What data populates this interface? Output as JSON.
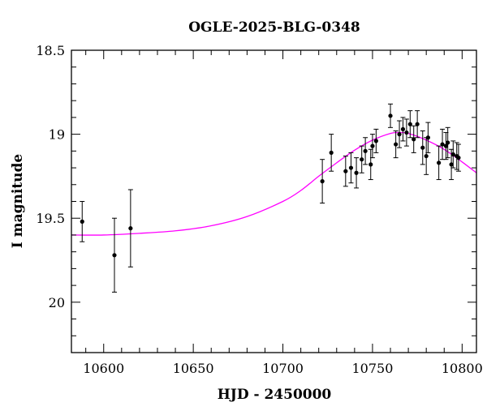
{
  "chart_data": {
    "type": "scatter",
    "title": "OGLE-2025-BLG-0348",
    "xlabel": "HJD - 2450000",
    "ylabel": "I magnitude",
    "xlim": [
      10582,
      10808
    ],
    "ylim": [
      18.5,
      20.3
    ],
    "y_inverted": true,
    "grid": false,
    "x_ticks": [
      10600,
      10650,
      10700,
      10750,
      10800
    ],
    "x_tick_labels": [
      "10600",
      "10650",
      "10700",
      "10750",
      "10800"
    ],
    "y_ticks": [
      18.5,
      19.0,
      19.5,
      20.0
    ],
    "y_tick_labels": [
      "18.5",
      "19",
      "19.5",
      "20"
    ],
    "series": [
      {
        "kind": "points_with_errorbars",
        "color": "#000000",
        "points": [
          {
            "x": 10588,
            "y": 19.52,
            "err": 0.12
          },
          {
            "x": 10606,
            "y": 19.72,
            "err": 0.22
          },
          {
            "x": 10615,
            "y": 19.56,
            "err": 0.23
          },
          {
            "x": 10722,
            "y": 19.28,
            "err": 0.13
          },
          {
            "x": 10727,
            "y": 19.11,
            "err": 0.11
          },
          {
            "x": 10735,
            "y": 19.22,
            "err": 0.09
          },
          {
            "x": 10738,
            "y": 19.2,
            "err": 0.09
          },
          {
            "x": 10741,
            "y": 19.23,
            "err": 0.09
          },
          {
            "x": 10744,
            "y": 19.15,
            "err": 0.08
          },
          {
            "x": 10746,
            "y": 19.1,
            "err": 0.08
          },
          {
            "x": 10749,
            "y": 19.18,
            "err": 0.09
          },
          {
            "x": 10750,
            "y": 19.07,
            "err": 0.07
          },
          {
            "x": 10752,
            "y": 19.04,
            "err": 0.07
          },
          {
            "x": 10760,
            "y": 18.89,
            "err": 0.07
          },
          {
            "x": 10763,
            "y": 19.06,
            "err": 0.08
          },
          {
            "x": 10765,
            "y": 19.0,
            "err": 0.08
          },
          {
            "x": 10767,
            "y": 18.97,
            "err": 0.07
          },
          {
            "x": 10769,
            "y": 18.99,
            "err": 0.08
          },
          {
            "x": 10771,
            "y": 18.94,
            "err": 0.08
          },
          {
            "x": 10773,
            "y": 19.03,
            "err": 0.08
          },
          {
            "x": 10775,
            "y": 18.94,
            "err": 0.08
          },
          {
            "x": 10778,
            "y": 19.08,
            "err": 0.1
          },
          {
            "x": 10780,
            "y": 19.13,
            "err": 0.11
          },
          {
            "x": 10781,
            "y": 19.02,
            "err": 0.09
          },
          {
            "x": 10787,
            "y": 19.17,
            "err": 0.1
          },
          {
            "x": 10789,
            "y": 19.06,
            "err": 0.09
          },
          {
            "x": 10791,
            "y": 19.07,
            "err": 0.08
          },
          {
            "x": 10792,
            "y": 19.05,
            "err": 0.09
          },
          {
            "x": 10794,
            "y": 19.18,
            "err": 0.09
          },
          {
            "x": 10795,
            "y": 19.12,
            "err": 0.08
          },
          {
            "x": 10797,
            "y": 19.13,
            "err": 0.08
          },
          {
            "x": 10798,
            "y": 19.14,
            "err": 0.08
          }
        ]
      },
      {
        "kind": "model_curve",
        "color": "#ff00ff",
        "x": [
          10582,
          10600,
          10620,
          10640,
          10660,
          10680,
          10700,
          10710,
          10720,
          10730,
          10740,
          10750,
          10760,
          10765,
          10770,
          10780,
          10790,
          10800,
          10808
        ],
        "y": [
          19.6,
          19.6,
          19.59,
          19.575,
          19.545,
          19.49,
          19.4,
          19.335,
          19.25,
          19.17,
          19.095,
          19.035,
          18.995,
          18.99,
          18.995,
          19.035,
          19.09,
          19.165,
          19.23
        ]
      }
    ]
  }
}
